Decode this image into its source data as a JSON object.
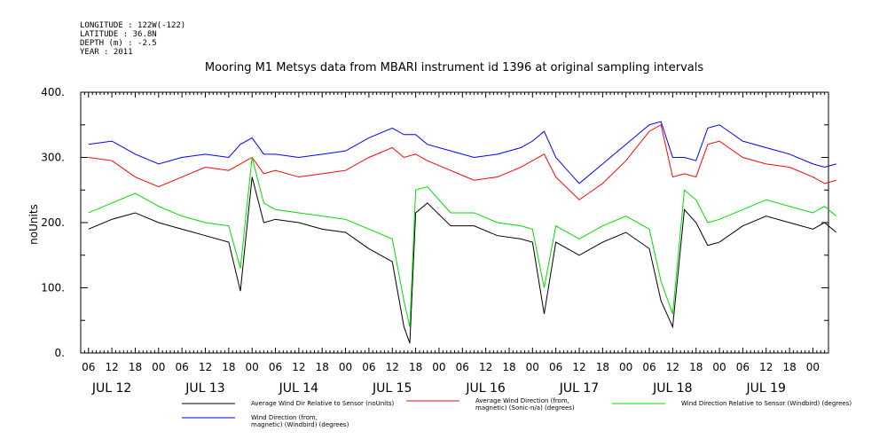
{
  "header": {
    "meta_lines": [
      "LONGITUDE : 122W(-122)",
      "LATITUDE : 36.8N",
      "DEPTH (m) : -2.5",
      "YEAR : 2011"
    ],
    "title": "Mooring M1 Metsys data from MBARI instrument id 1396 at original sampling intervals"
  },
  "chart_data": {
    "type": "line",
    "title": "Mooring M1 Metsys data from MBARI instrument id 1396 at original sampling intervals",
    "ylabel": "noUnits",
    "xlabel": "",
    "ylim": [
      0,
      400
    ],
    "yticks": [
      0,
      100,
      200,
      300,
      400
    ],
    "ytick_labels": [
      "0.",
      "100.",
      "200.",
      "300.",
      "400."
    ],
    "xlim_hours": [
      4,
      132
    ],
    "x_hour_ticks": [
      6,
      12,
      18,
      0,
      6,
      12,
      18,
      0,
      6,
      12,
      18,
      0,
      6,
      12,
      18,
      0,
      6,
      12,
      18,
      0,
      6,
      12,
      18,
      0,
      6,
      12,
      18,
      0,
      6,
      12,
      18,
      0
    ],
    "x_hour_tick_offsets": [
      6,
      12,
      18,
      24,
      30,
      36,
      42,
      48,
      54,
      60,
      66,
      72,
      78,
      84,
      90,
      96,
      102,
      108,
      114,
      120,
      126,
      132,
      138,
      144,
      150,
      156,
      162,
      168,
      174,
      180,
      186,
      192
    ],
    "x_date_labels": [
      "JUL 12",
      "JUL 13",
      "JUL 14",
      "JUL 15",
      "JUL 16",
      "JUL 17",
      "JUL 18",
      "JUL 19"
    ],
    "x_date_offsets": [
      12,
      36,
      60,
      84,
      108,
      132,
      156,
      180
    ],
    "grid": false,
    "legend_placement": "bottom",
    "series": [
      {
        "name": "Average Wind Dir Relative to Sensor (noUnits)",
        "color": "#000000",
        "x": [
          4,
          8,
          12,
          16,
          20,
          24,
          28,
          30,
          32,
          34,
          36,
          40,
          44,
          48,
          52,
          56,
          58,
          59,
          60,
          62,
          66,
          70,
          74,
          78,
          80,
          82,
          84,
          88,
          92,
          96,
          100,
          102,
          104,
          106,
          108,
          110,
          112,
          116,
          120,
          124,
          128,
          130,
          132
        ],
        "values": [
          190,
          205,
          215,
          200,
          190,
          180,
          170,
          95,
          270,
          200,
          205,
          200,
          190,
          185,
          160,
          140,
          40,
          15,
          215,
          230,
          195,
          195,
          180,
          175,
          170,
          60,
          170,
          150,
          170,
          185,
          160,
          80,
          40,
          220,
          200,
          165,
          170,
          195,
          210,
          200,
          190,
          200,
          185
        ]
      },
      {
        "name": "Average Wind Direction (from, magnetic) (Sonic-n/a) (degrees)",
        "color": "#ff0000",
        "x": [
          4,
          8,
          12,
          16,
          20,
          24,
          28,
          30,
          32,
          34,
          36,
          40,
          44,
          48,
          52,
          56,
          58,
          60,
          62,
          66,
          70,
          74,
          78,
          80,
          82,
          84,
          88,
          92,
          96,
          100,
          102,
          104,
          106,
          108,
          110,
          112,
          116,
          120,
          124,
          128,
          130,
          132
        ],
        "values": [
          300,
          295,
          270,
          255,
          270,
          285,
          280,
          290,
          300,
          275,
          280,
          270,
          275,
          280,
          300,
          315,
          300,
          305,
          295,
          280,
          265,
          270,
          285,
          295,
          305,
          270,
          235,
          260,
          295,
          340,
          350,
          270,
          275,
          270,
          320,
          325,
          300,
          290,
          285,
          270,
          260,
          265
        ]
      },
      {
        "name": "Wind Direction Relative to Sensor (Windbird) (degrees)",
        "color": "#00dd00",
        "x": [
          4,
          8,
          12,
          16,
          20,
          24,
          28,
          30,
          32,
          34,
          36,
          40,
          44,
          48,
          52,
          56,
          58,
          59,
          60,
          62,
          66,
          70,
          74,
          78,
          80,
          82,
          84,
          88,
          92,
          96,
          100,
          102,
          104,
          106,
          108,
          110,
          112,
          116,
          120,
          124,
          128,
          130,
          132
        ],
        "values": [
          215,
          230,
          245,
          225,
          210,
          200,
          195,
          130,
          300,
          230,
          220,
          215,
          210,
          205,
          190,
          175,
          80,
          40,
          250,
          255,
          215,
          215,
          200,
          195,
          190,
          100,
          195,
          175,
          195,
          210,
          190,
          110,
          60,
          250,
          235,
          200,
          205,
          220,
          235,
          225,
          215,
          225,
          210
        ]
      },
      {
        "name": "Wind Direction (from, magnetic) (Windbird) (degrees)",
        "color": "#0000ff",
        "x": [
          4,
          8,
          12,
          16,
          20,
          24,
          28,
          30,
          32,
          34,
          36,
          40,
          44,
          48,
          52,
          56,
          58,
          60,
          62,
          66,
          70,
          74,
          78,
          80,
          82,
          84,
          88,
          92,
          96,
          100,
          102,
          104,
          106,
          108,
          110,
          112,
          116,
          120,
          124,
          128,
          130,
          132
        ],
        "values": [
          320,
          325,
          305,
          290,
          300,
          305,
          300,
          320,
          330,
          305,
          305,
          300,
          305,
          310,
          330,
          345,
          335,
          335,
          320,
          310,
          300,
          305,
          315,
          325,
          340,
          300,
          260,
          290,
          320,
          350,
          355,
          300,
          300,
          295,
          345,
          350,
          325,
          315,
          305,
          290,
          285,
          290
        ]
      }
    ]
  },
  "legend": [
    {
      "label_lines": [
        "Average Wind Dir Relative to Sensor (noUnits)"
      ],
      "color": "#000000"
    },
    {
      "label_lines": [
        "Average Wind Direction (from,",
        "magnetic) (Sonic-n/a) (degrees)"
      ],
      "color": "#ff0000"
    },
    {
      "label_lines": [
        "Wind Direction Relative to Sensor (Windbird) (degrees)"
      ],
      "color": "#00dd00"
    },
    {
      "label_lines": [
        "Wind Direction (from,",
        "magnetic) (Windbird) (degrees)"
      ],
      "color": "#0000ff"
    }
  ]
}
